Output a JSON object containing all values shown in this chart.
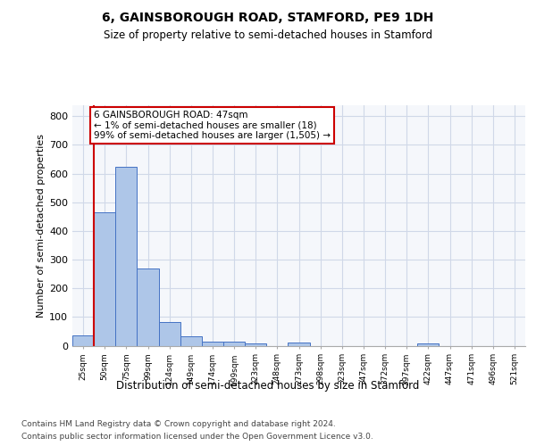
{
  "title1": "6, GAINSBOROUGH ROAD, STAMFORD, PE9 1DH",
  "title2": "Size of property relative to semi-detached houses in Stamford",
  "xlabel": "Distribution of semi-detached houses by size in Stamford",
  "ylabel": "Number of semi-detached properties",
  "categories": [
    "25sqm",
    "50sqm",
    "75sqm",
    "99sqm",
    "124sqm",
    "149sqm",
    "174sqm",
    "199sqm",
    "223sqm",
    "248sqm",
    "273sqm",
    "298sqm",
    "323sqm",
    "347sqm",
    "372sqm",
    "397sqm",
    "422sqm",
    "447sqm",
    "471sqm",
    "496sqm",
    "521sqm"
  ],
  "values": [
    35,
    465,
    625,
    268,
    82,
    32,
    15,
    13,
    8,
    0,
    10,
    0,
    0,
    0,
    0,
    0,
    7,
    0,
    0,
    0,
    0
  ],
  "bar_color": "#aec6e8",
  "bar_edge_color": "#4472c4",
  "annotation_text_line1": "6 GAINSBOROUGH ROAD: 47sqm",
  "annotation_text_line2": "← 1% of semi-detached houses are smaller (18)",
  "annotation_text_line3": "99% of semi-detached houses are larger (1,505) →",
  "annotation_box_color": "#ffffff",
  "annotation_box_edge": "#cc0000",
  "vline_color": "#cc0000",
  "vline_x_index": 0.5,
  "ylim": [
    0,
    840
  ],
  "yticks": [
    0,
    100,
    200,
    300,
    400,
    500,
    600,
    700,
    800
  ],
  "grid_color": "#d0d8e8",
  "background_color": "#f5f7fb",
  "footer1": "Contains HM Land Registry data © Crown copyright and database right 2024.",
  "footer2": "Contains public sector information licensed under the Open Government Licence v3.0."
}
